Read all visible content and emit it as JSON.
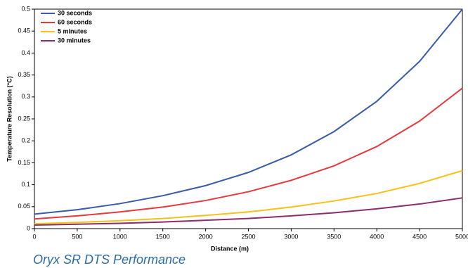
{
  "chart_data": {
    "type": "line",
    "caption": "Oryx SR DTS Performance",
    "x_label": "Distance (m)",
    "y_label": "Temperature Resolution (°C)",
    "x": [
      0,
      500,
      1000,
      1500,
      2000,
      2500,
      3000,
      3500,
      4000,
      4500,
      5000
    ],
    "series": [
      {
        "name": "30 seconds",
        "color": "#3a5ba8",
        "values": [
          0.033,
          0.043,
          0.057,
          0.075,
          0.098,
          0.128,
          0.168,
          0.221,
          0.29,
          0.381,
          0.5
        ]
      },
      {
        "name": "60 seconds",
        "color": "#e53a3d",
        "values": [
          0.022,
          0.029,
          0.038,
          0.049,
          0.064,
          0.084,
          0.11,
          0.143,
          0.187,
          0.245,
          0.32
        ]
      },
      {
        "name": "5 minutes",
        "color": "#f5c21a",
        "values": [
          0.011,
          0.014,
          0.018,
          0.023,
          0.03,
          0.038,
          0.049,
          0.063,
          0.08,
          0.103,
          0.132
        ]
      },
      {
        "name": "30 minutes",
        "color": "#8c2d6b",
        "values": [
          0.008,
          0.01,
          0.012,
          0.015,
          0.019,
          0.023,
          0.029,
          0.036,
          0.045,
          0.056,
          0.07
        ]
      }
    ],
    "xlim": [
      0,
      5000
    ],
    "xticks": [
      0,
      500,
      1000,
      1500,
      2000,
      2500,
      3000,
      3500,
      4000,
      4500,
      5000
    ],
    "ylim": [
      0,
      0.5
    ],
    "yticks": [
      0,
      0.05,
      0.1,
      0.15,
      0.2,
      0.25,
      0.3,
      0.35,
      0.4,
      0.45,
      0.5
    ],
    "legend": "upper left",
    "grid": false
  }
}
